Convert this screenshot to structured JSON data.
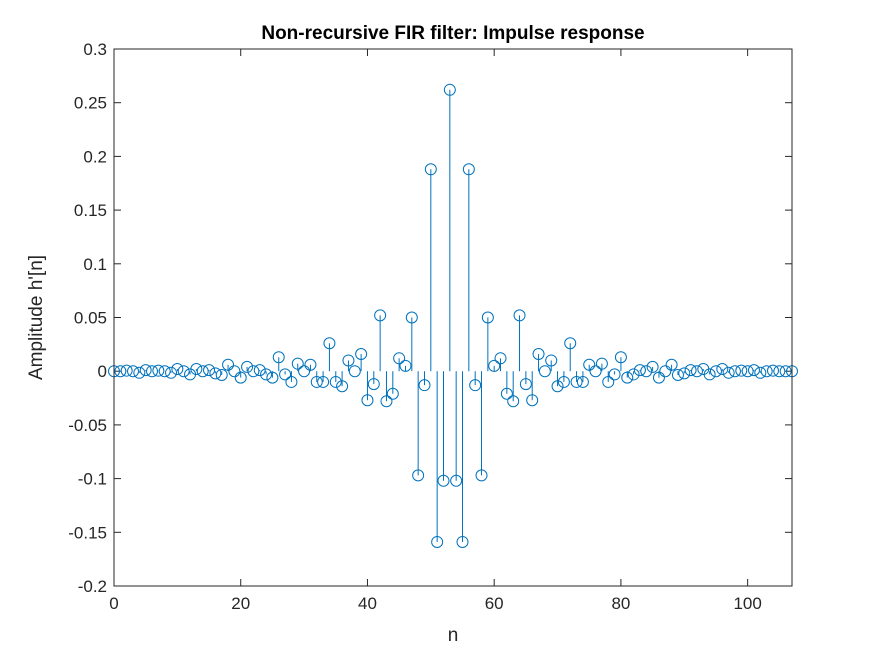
{
  "chart_data": {
    "type": "stem",
    "title": "Non-recursive FIR filter: Impulse response",
    "xlabel": "n",
    "ylabel": "Amplitude h'[n]",
    "xlim": [
      0,
      107
    ],
    "ylim": [
      -0.2,
      0.3
    ],
    "xticks": [
      "0",
      "20",
      "40",
      "60",
      "80",
      "100"
    ],
    "yticks": [
      "-0.2",
      "-0.15",
      "-0.1",
      "-0.05",
      "0",
      "0.05",
      "0.1",
      "0.15",
      "0.2",
      "0.25",
      "0.3"
    ],
    "grid": false,
    "series": [
      {
        "color": "#0072BD",
        "marker": "circle",
        "points": [
          [
            0,
            0.0
          ],
          [
            1,
            0.0
          ],
          [
            2,
            0.0005
          ],
          [
            3,
            0.0
          ],
          [
            4,
            -0.0015
          ],
          [
            5,
            0.001
          ],
          [
            6,
            0.0
          ],
          [
            7,
            0.0005
          ],
          [
            8,
            0.0
          ],
          [
            9,
            -0.0015
          ],
          [
            10,
            0.002
          ],
          [
            11,
            0.0
          ],
          [
            12,
            -0.003
          ],
          [
            13,
            0.002
          ],
          [
            14,
            0.0
          ],
          [
            15,
            0.001
          ],
          [
            16,
            -0.002
          ],
          [
            17,
            -0.0035
          ],
          [
            18,
            0.006
          ],
          [
            19,
            0.0
          ],
          [
            20,
            -0.006
          ],
          [
            21,
            0.004
          ],
          [
            22,
            0.0
          ],
          [
            23,
            0.001
          ],
          [
            24,
            -0.003
          ],
          [
            25,
            -0.006
          ],
          [
            26,
            0.013
          ],
          [
            27,
            -0.003
          ],
          [
            28,
            -0.01
          ],
          [
            29,
            0.007
          ],
          [
            30,
            0.0
          ],
          [
            31,
            0.006
          ],
          [
            32,
            -0.01
          ],
          [
            33,
            -0.01
          ],
          [
            34,
            0.026
          ],
          [
            35,
            -0.01
          ],
          [
            36,
            -0.014
          ],
          [
            37,
            0.01
          ],
          [
            38,
            0.0
          ],
          [
            39,
            0.016
          ],
          [
            40,
            -0.027
          ],
          [
            41,
            -0.012
          ],
          [
            42,
            0.052
          ],
          [
            43,
            -0.028
          ],
          [
            44,
            -0.021
          ],
          [
            45,
            0.012
          ],
          [
            46,
            0.005
          ],
          [
            47,
            0.05
          ],
          [
            48,
            -0.097
          ],
          [
            49,
            -0.013
          ],
          [
            50,
            0.188
          ],
          [
            51,
            -0.159
          ],
          [
            52,
            -0.102
          ],
          [
            53,
            0.262
          ],
          [
            54,
            -0.102
          ],
          [
            55,
            -0.159
          ],
          [
            56,
            0.188
          ],
          [
            57,
            -0.013
          ],
          [
            58,
            -0.097
          ],
          [
            59,
            0.05
          ],
          [
            60,
            0.005
          ],
          [
            61,
            0.012
          ],
          [
            62,
            -0.021
          ],
          [
            63,
            -0.028
          ],
          [
            64,
            0.052
          ],
          [
            65,
            -0.012
          ],
          [
            66,
            -0.027
          ],
          [
            67,
            0.016
          ],
          [
            68,
            0.0
          ],
          [
            69,
            0.01
          ],
          [
            70,
            -0.014
          ],
          [
            71,
            -0.01
          ],
          [
            72,
            0.026
          ],
          [
            73,
            -0.01
          ],
          [
            74,
            -0.01
          ],
          [
            75,
            0.006
          ],
          [
            76,
            0.0
          ],
          [
            77,
            0.007
          ],
          [
            78,
            -0.01
          ],
          [
            79,
            -0.003
          ],
          [
            80,
            0.013
          ],
          [
            81,
            -0.006
          ],
          [
            82,
            -0.003
          ],
          [
            83,
            0.001
          ],
          [
            84,
            0.0
          ],
          [
            85,
            0.004
          ],
          [
            86,
            -0.006
          ],
          [
            87,
            0.0
          ],
          [
            88,
            0.006
          ],
          [
            89,
            -0.0035
          ],
          [
            90,
            -0.002
          ],
          [
            91,
            0.001
          ],
          [
            92,
            0.0
          ],
          [
            93,
            0.002
          ],
          [
            94,
            -0.003
          ],
          [
            95,
            0.0
          ],
          [
            96,
            0.002
          ],
          [
            97,
            -0.0015
          ],
          [
            98,
            0.0
          ],
          [
            99,
            0.0005
          ],
          [
            100,
            0.0
          ],
          [
            101,
            0.001
          ],
          [
            102,
            -0.0015
          ],
          [
            103,
            0.0
          ],
          [
            104,
            0.0005
          ],
          [
            105,
            0.0
          ],
          [
            106,
            0.0
          ],
          [
            107,
            0.0
          ]
        ]
      }
    ]
  }
}
